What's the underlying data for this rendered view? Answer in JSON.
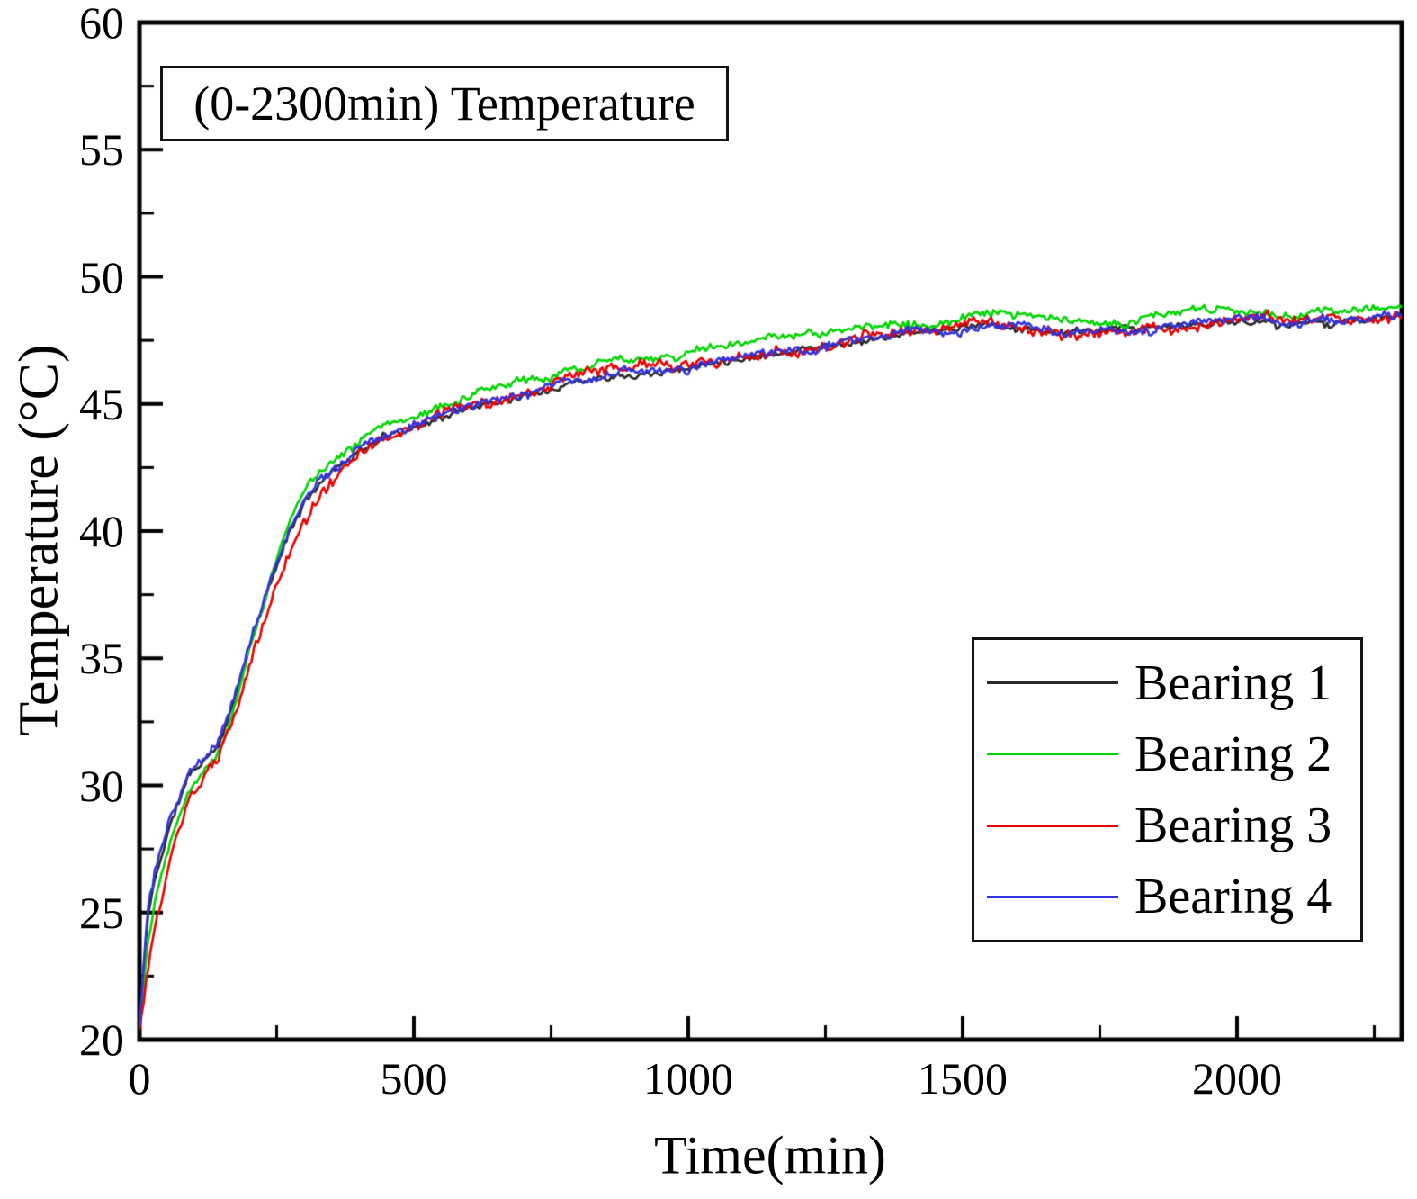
{
  "figure": {
    "background": "#ffffff",
    "frame_color": "#000000"
  },
  "chart_data": {
    "type": "line",
    "title": "(0-2300min) Temperature",
    "xlabel": "Time(min)",
    "ylabel": "Temperature (°C)",
    "xlim": [
      0,
      2300
    ],
    "ylim": [
      20,
      60
    ],
    "x_major_ticks": [
      0,
      500,
      1000,
      1500,
      2000
    ],
    "x_minor_ticks": [
      250,
      750,
      1250,
      1750,
      2250
    ],
    "y_major_ticks": [
      20,
      25,
      30,
      35,
      40,
      45,
      50,
      55,
      60
    ],
    "y_minor_ticks": [
      22.5,
      27.5,
      32.5,
      37.5,
      42.5,
      47.5,
      52.5,
      57.5
    ],
    "grid": false,
    "legend_position": "inside-right-lower",
    "sample_step_min": 4,
    "series": [
      {
        "name": "Bearing 1",
        "color": "#2b2b2b",
        "noise": 0.1,
        "seed": 11,
        "anchors": [
          [
            0,
            20.5
          ],
          [
            15,
            24.8
          ],
          [
            30,
            26.5
          ],
          [
            60,
            28.7
          ],
          [
            90,
            30.4
          ],
          [
            120,
            31.0
          ],
          [
            140,
            31.45
          ],
          [
            160,
            32.5
          ],
          [
            180,
            33.95
          ],
          [
            210,
            36.1
          ],
          [
            240,
            38.0
          ],
          [
            270,
            39.75
          ],
          [
            300,
            41.05
          ],
          [
            330,
            41.95
          ],
          [
            360,
            42.55
          ],
          [
            400,
            43.15
          ],
          [
            450,
            43.75
          ],
          [
            500,
            44.15
          ],
          [
            560,
            44.55
          ],
          [
            620,
            44.95
          ],
          [
            680,
            45.25
          ],
          [
            740,
            45.65
          ],
          [
            800,
            45.95
          ],
          [
            860,
            46.2
          ],
          [
            900,
            46.28
          ],
          [
            980,
            46.38
          ],
          [
            1040,
            46.6
          ],
          [
            1100,
            46.85
          ],
          [
            1180,
            47.1
          ],
          [
            1260,
            47.35
          ],
          [
            1340,
            47.58
          ],
          [
            1420,
            47.78
          ],
          [
            1500,
            47.98
          ],
          [
            1560,
            48.08
          ],
          [
            1620,
            47.93
          ],
          [
            1680,
            47.83
          ],
          [
            1740,
            47.78
          ],
          [
            1800,
            47.88
          ],
          [
            1860,
            47.98
          ],
          [
            1920,
            48.08
          ],
          [
            1980,
            48.18
          ],
          [
            2040,
            48.32
          ],
          [
            2080,
            48.08
          ],
          [
            2140,
            48.22
          ],
          [
            2200,
            48.28
          ],
          [
            2300,
            48.42
          ]
        ]
      },
      {
        "name": "Bearing 2",
        "color": "#00d600",
        "noise": 0.12,
        "seed": 22,
        "anchors": [
          [
            0,
            20.6
          ],
          [
            15,
            23.8
          ],
          [
            30,
            25.8
          ],
          [
            60,
            28.2
          ],
          [
            90,
            30.0
          ],
          [
            120,
            30.8
          ],
          [
            140,
            31.2
          ],
          [
            160,
            32.3
          ],
          [
            180,
            33.8
          ],
          [
            210,
            36.1
          ],
          [
            240,
            38.2
          ],
          [
            270,
            40.1
          ],
          [
            300,
            41.5
          ],
          [
            330,
            42.4
          ],
          [
            360,
            43.0
          ],
          [
            400,
            43.6
          ],
          [
            450,
            44.2
          ],
          [
            500,
            44.6
          ],
          [
            560,
            45.0
          ],
          [
            620,
            45.4
          ],
          [
            680,
            45.75
          ],
          [
            740,
            46.1
          ],
          [
            800,
            46.45
          ],
          [
            860,
            46.8
          ],
          [
            900,
            46.9
          ],
          [
            980,
            46.95
          ],
          [
            1040,
            47.15
          ],
          [
            1100,
            47.35
          ],
          [
            1180,
            47.6
          ],
          [
            1260,
            47.8
          ],
          [
            1340,
            48.0
          ],
          [
            1420,
            48.2
          ],
          [
            1500,
            48.4
          ],
          [
            1560,
            48.5
          ],
          [
            1620,
            48.35
          ],
          [
            1680,
            48.25
          ],
          [
            1740,
            48.2
          ],
          [
            1800,
            48.25
          ],
          [
            1860,
            48.4
          ],
          [
            1920,
            48.55
          ],
          [
            1980,
            48.65
          ],
          [
            2040,
            48.75
          ],
          [
            2080,
            48.5
          ],
          [
            2140,
            48.65
          ],
          [
            2200,
            48.7
          ],
          [
            2300,
            48.85
          ]
        ]
      },
      {
        "name": "Bearing 3",
        "color": "#ee0000",
        "noise": 0.16,
        "seed": 33,
        "anchors": [
          [
            0,
            20.4
          ],
          [
            15,
            22.6
          ],
          [
            30,
            24.6
          ],
          [
            60,
            27.3
          ],
          [
            90,
            29.3
          ],
          [
            120,
            30.4
          ],
          [
            140,
            30.9
          ],
          [
            160,
            31.9
          ],
          [
            180,
            33.2
          ],
          [
            210,
            35.3
          ],
          [
            240,
            37.2
          ],
          [
            270,
            39.0
          ],
          [
            300,
            40.4
          ],
          [
            330,
            41.4
          ],
          [
            360,
            42.2
          ],
          [
            400,
            43.0
          ],
          [
            450,
            43.7
          ],
          [
            500,
            44.1
          ],
          [
            560,
            44.55
          ],
          [
            620,
            44.95
          ],
          [
            680,
            45.3
          ],
          [
            740,
            45.65
          ],
          [
            800,
            46.0
          ],
          [
            860,
            46.25
          ],
          [
            900,
            46.3
          ],
          [
            980,
            46.4
          ],
          [
            1040,
            46.6
          ],
          [
            1100,
            46.85
          ],
          [
            1180,
            47.1
          ],
          [
            1260,
            47.35
          ],
          [
            1340,
            47.6
          ],
          [
            1420,
            47.8
          ],
          [
            1500,
            48.0
          ],
          [
            1560,
            48.1
          ],
          [
            1620,
            47.9
          ],
          [
            1680,
            47.8
          ],
          [
            1740,
            47.75
          ],
          [
            1800,
            47.85
          ],
          [
            1860,
            48.0
          ],
          [
            1920,
            48.1
          ],
          [
            1980,
            48.2
          ],
          [
            2040,
            48.35
          ],
          [
            2080,
            48.1
          ],
          [
            2140,
            48.3
          ],
          [
            2200,
            48.35
          ],
          [
            2300,
            48.5
          ]
        ]
      },
      {
        "name": "Bearing 4",
        "color": "#3333dd",
        "noise": 0.13,
        "seed": 44,
        "anchors": [
          [
            0,
            20.5
          ],
          [
            15,
            25.2
          ],
          [
            30,
            26.8
          ],
          [
            60,
            28.9
          ],
          [
            90,
            30.5
          ],
          [
            120,
            31.1
          ],
          [
            140,
            31.5
          ],
          [
            160,
            32.6
          ],
          [
            180,
            34.0
          ],
          [
            210,
            36.2
          ],
          [
            240,
            38.1
          ],
          [
            270,
            39.8
          ],
          [
            300,
            41.1
          ],
          [
            330,
            42.0
          ],
          [
            360,
            42.6
          ],
          [
            400,
            43.2
          ],
          [
            450,
            43.8
          ],
          [
            500,
            44.2
          ],
          [
            560,
            44.6
          ],
          [
            620,
            45.0
          ],
          [
            680,
            45.3
          ],
          [
            740,
            45.7
          ],
          [
            800,
            46.0
          ],
          [
            860,
            46.25
          ],
          [
            900,
            46.3
          ],
          [
            980,
            46.4
          ],
          [
            1040,
            46.65
          ],
          [
            1100,
            46.9
          ],
          [
            1180,
            47.15
          ],
          [
            1260,
            47.4
          ],
          [
            1340,
            47.6
          ],
          [
            1420,
            47.8
          ],
          [
            1500,
            48.0
          ],
          [
            1560,
            48.1
          ],
          [
            1620,
            47.95
          ],
          [
            1680,
            47.85
          ],
          [
            1740,
            47.8
          ],
          [
            1800,
            47.9
          ],
          [
            1860,
            48.0
          ],
          [
            1920,
            48.1
          ],
          [
            1980,
            48.2
          ],
          [
            2040,
            48.35
          ],
          [
            2080,
            48.1
          ],
          [
            2140,
            48.25
          ],
          [
            2200,
            48.3
          ],
          [
            2300,
            48.45
          ]
        ]
      }
    ]
  }
}
